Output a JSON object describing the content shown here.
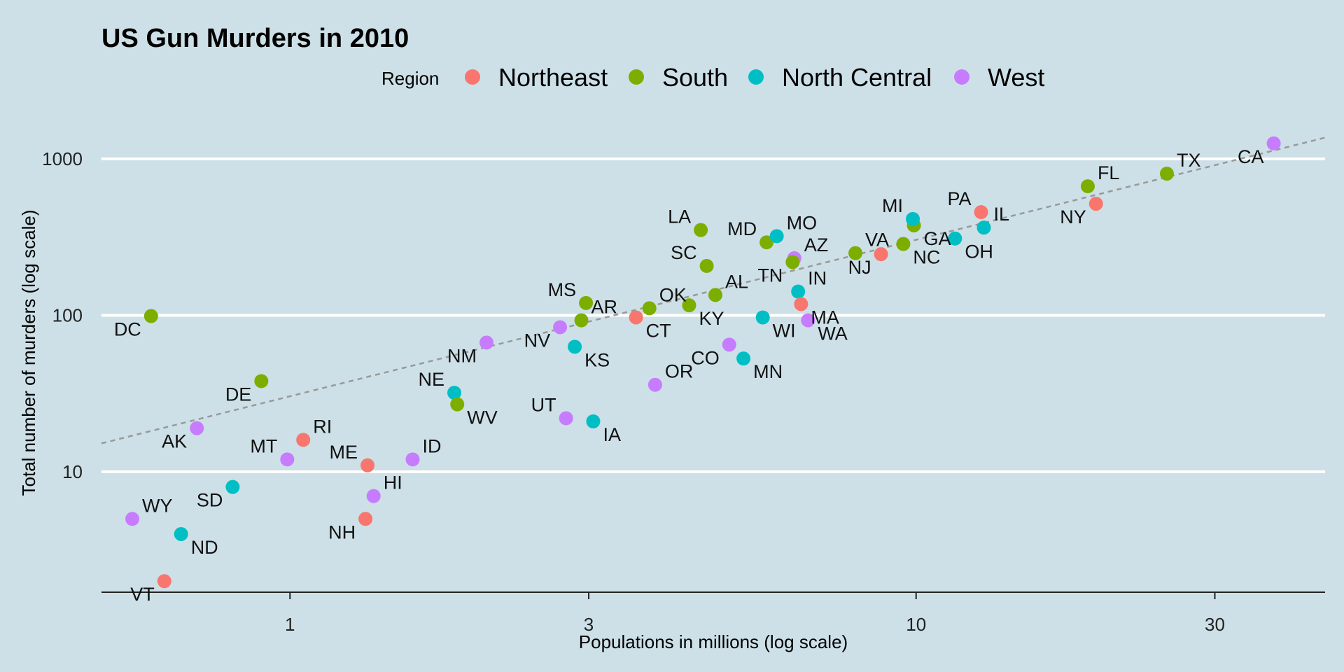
{
  "chart_data": {
    "type": "scatter",
    "title": "US Gun Murders in 2010",
    "xlabel": "Populations in millions (log scale)",
    "ylabel": "Total number of murders (log scale)",
    "x_scale": "log",
    "y_scale": "log",
    "xlim": [
      0.5,
      45
    ],
    "ylim": [
      1.7,
      1800
    ],
    "x_ticks": [
      1,
      3,
      10,
      30
    ],
    "x_tick_labels": [
      "1",
      "3",
      "10",
      "30"
    ],
    "y_ticks": [
      10,
      100,
      1000
    ],
    "y_tick_labels": [
      "10",
      "100",
      "1000"
    ],
    "grid": "horizontal major lines",
    "legend": {
      "title": "Region",
      "position": "top",
      "entries": [
        {
          "name": "Northeast",
          "color": "#f8766d"
        },
        {
          "name": "South",
          "color": "#7cae00"
        },
        {
          "name": "North Central",
          "color": "#00bfc4"
        },
        {
          "name": "West",
          "color": "#c77cff"
        }
      ]
    },
    "reference_line": {
      "style": "dashed",
      "color": "#999999",
      "murders_per_million": 30.4
    },
    "points": [
      {
        "label": "AL",
        "region": "South",
        "x": 4.78,
        "y": 135,
        "lpos": "tr"
      },
      {
        "label": "AK",
        "region": "West",
        "x": 0.71,
        "y": 19,
        "lpos": "bl"
      },
      {
        "label": "AZ",
        "region": "West",
        "x": 6.39,
        "y": 232,
        "lpos": "tr"
      },
      {
        "label": "AR",
        "region": "South",
        "x": 2.92,
        "y": 93,
        "lpos": "tr"
      },
      {
        "label": "CA",
        "region": "West",
        "x": 37.25,
        "y": 1257,
        "lpos": "bl"
      },
      {
        "label": "CO",
        "region": "West",
        "x": 5.03,
        "y": 65,
        "lpos": "bl"
      },
      {
        "label": "CT",
        "region": "Northeast",
        "x": 3.57,
        "y": 97,
        "lpos": "br"
      },
      {
        "label": "DE",
        "region": "South",
        "x": 0.9,
        "y": 38,
        "lpos": "bl"
      },
      {
        "label": "DC",
        "region": "South",
        "x": 0.6,
        "y": 99,
        "lpos": "bl"
      },
      {
        "label": "FL",
        "region": "South",
        "x": 18.8,
        "y": 669,
        "lpos": "tr"
      },
      {
        "label": "GA",
        "region": "South",
        "x": 9.92,
        "y": 376,
        "lpos": "br"
      },
      {
        "label": "HI",
        "region": "West",
        "x": 1.36,
        "y": 7,
        "lpos": "tr"
      },
      {
        "label": "ID",
        "region": "West",
        "x": 1.57,
        "y": 12,
        "lpos": "tr"
      },
      {
        "label": "IL",
        "region": "North Central",
        "x": 12.83,
        "y": 364,
        "lpos": "tr"
      },
      {
        "label": "IN",
        "region": "North Central",
        "x": 6.48,
        "y": 142,
        "lpos": "tr"
      },
      {
        "label": "IA",
        "region": "North Central",
        "x": 3.05,
        "y": 21,
        "lpos": "br"
      },
      {
        "label": "KS",
        "region": "North Central",
        "x": 2.85,
        "y": 63,
        "lpos": "br"
      },
      {
        "label": "KY",
        "region": "South",
        "x": 4.34,
        "y": 116,
        "lpos": "br"
      },
      {
        "label": "LA",
        "region": "South",
        "x": 4.53,
        "y": 351,
        "lpos": "tl"
      },
      {
        "label": "ME",
        "region": "Northeast",
        "x": 1.33,
        "y": 11,
        "lpos": "tl"
      },
      {
        "label": "MD",
        "region": "South",
        "x": 5.77,
        "y": 293,
        "lpos": "tl"
      },
      {
        "label": "MA",
        "region": "Northeast",
        "x": 6.55,
        "y": 118,
        "lpos": "br"
      },
      {
        "label": "MI",
        "region": "North Central",
        "x": 9.88,
        "y": 413,
        "lpos": "tl"
      },
      {
        "label": "MN",
        "region": "North Central",
        "x": 5.3,
        "y": 53,
        "lpos": "br"
      },
      {
        "label": "MS",
        "region": "South",
        "x": 2.97,
        "y": 120,
        "lpos": "tl"
      },
      {
        "label": "MO",
        "region": "North Central",
        "x": 5.99,
        "y": 321,
        "lpos": "tr"
      },
      {
        "label": "MT",
        "region": "West",
        "x": 0.99,
        "y": 12,
        "lpos": "tl"
      },
      {
        "label": "NE",
        "region": "North Central",
        "x": 1.83,
        "y": 32,
        "lpos": "tl"
      },
      {
        "label": "NV",
        "region": "West",
        "x": 2.7,
        "y": 84,
        "lpos": "bl"
      },
      {
        "label": "NH",
        "region": "Northeast",
        "x": 1.32,
        "y": 5,
        "lpos": "bl"
      },
      {
        "label": "NJ",
        "region": "Northeast",
        "x": 8.79,
        "y": 246,
        "lpos": "bl"
      },
      {
        "label": "NM",
        "region": "West",
        "x": 2.06,
        "y": 67,
        "lpos": "bl"
      },
      {
        "label": "NY",
        "region": "Northeast",
        "x": 19.38,
        "y": 517,
        "lpos": "bl"
      },
      {
        "label": "NC",
        "region": "South",
        "x": 9.54,
        "y": 286,
        "lpos": "br"
      },
      {
        "label": "ND",
        "region": "North Central",
        "x": 0.67,
        "y": 4,
        "lpos": "br"
      },
      {
        "label": "OH",
        "region": "North Central",
        "x": 11.54,
        "y": 310,
        "lpos": "br"
      },
      {
        "label": "OK",
        "region": "South",
        "x": 3.75,
        "y": 111,
        "lpos": "tr"
      },
      {
        "label": "OR",
        "region": "West",
        "x": 3.83,
        "y": 36,
        "lpos": "tr"
      },
      {
        "label": "PA",
        "region": "Northeast",
        "x": 12.7,
        "y": 457,
        "lpos": "tl"
      },
      {
        "label": "RI",
        "region": "Northeast",
        "x": 1.05,
        "y": 16,
        "lpos": "tr"
      },
      {
        "label": "SC",
        "region": "South",
        "x": 4.63,
        "y": 207,
        "lpos": "tl"
      },
      {
        "label": "SD",
        "region": "North Central",
        "x": 0.81,
        "y": 8,
        "lpos": "bl"
      },
      {
        "label": "TN",
        "region": "South",
        "x": 6.35,
        "y": 219,
        "lpos": "bl"
      },
      {
        "label": "TX",
        "region": "South",
        "x": 25.15,
        "y": 805,
        "lpos": "tr"
      },
      {
        "label": "UT",
        "region": "West",
        "x": 2.76,
        "y": 22,
        "lpos": "tl"
      },
      {
        "label": "VT",
        "region": "Northeast",
        "x": 0.63,
        "y": 2,
        "lpos": "bl"
      },
      {
        "label": "VA",
        "region": "South",
        "x": 8.0,
        "y": 250,
        "lpos": "tr"
      },
      {
        "label": "WA",
        "region": "West",
        "x": 6.72,
        "y": 93,
        "lpos": "br"
      },
      {
        "label": "WV",
        "region": "South",
        "x": 1.85,
        "y": 27,
        "lpos": "br"
      },
      {
        "label": "WI",
        "region": "North Central",
        "x": 5.69,
        "y": 97,
        "lpos": "br"
      },
      {
        "label": "WY",
        "region": "West",
        "x": 0.56,
        "y": 5,
        "lpos": "tr"
      }
    ]
  }
}
